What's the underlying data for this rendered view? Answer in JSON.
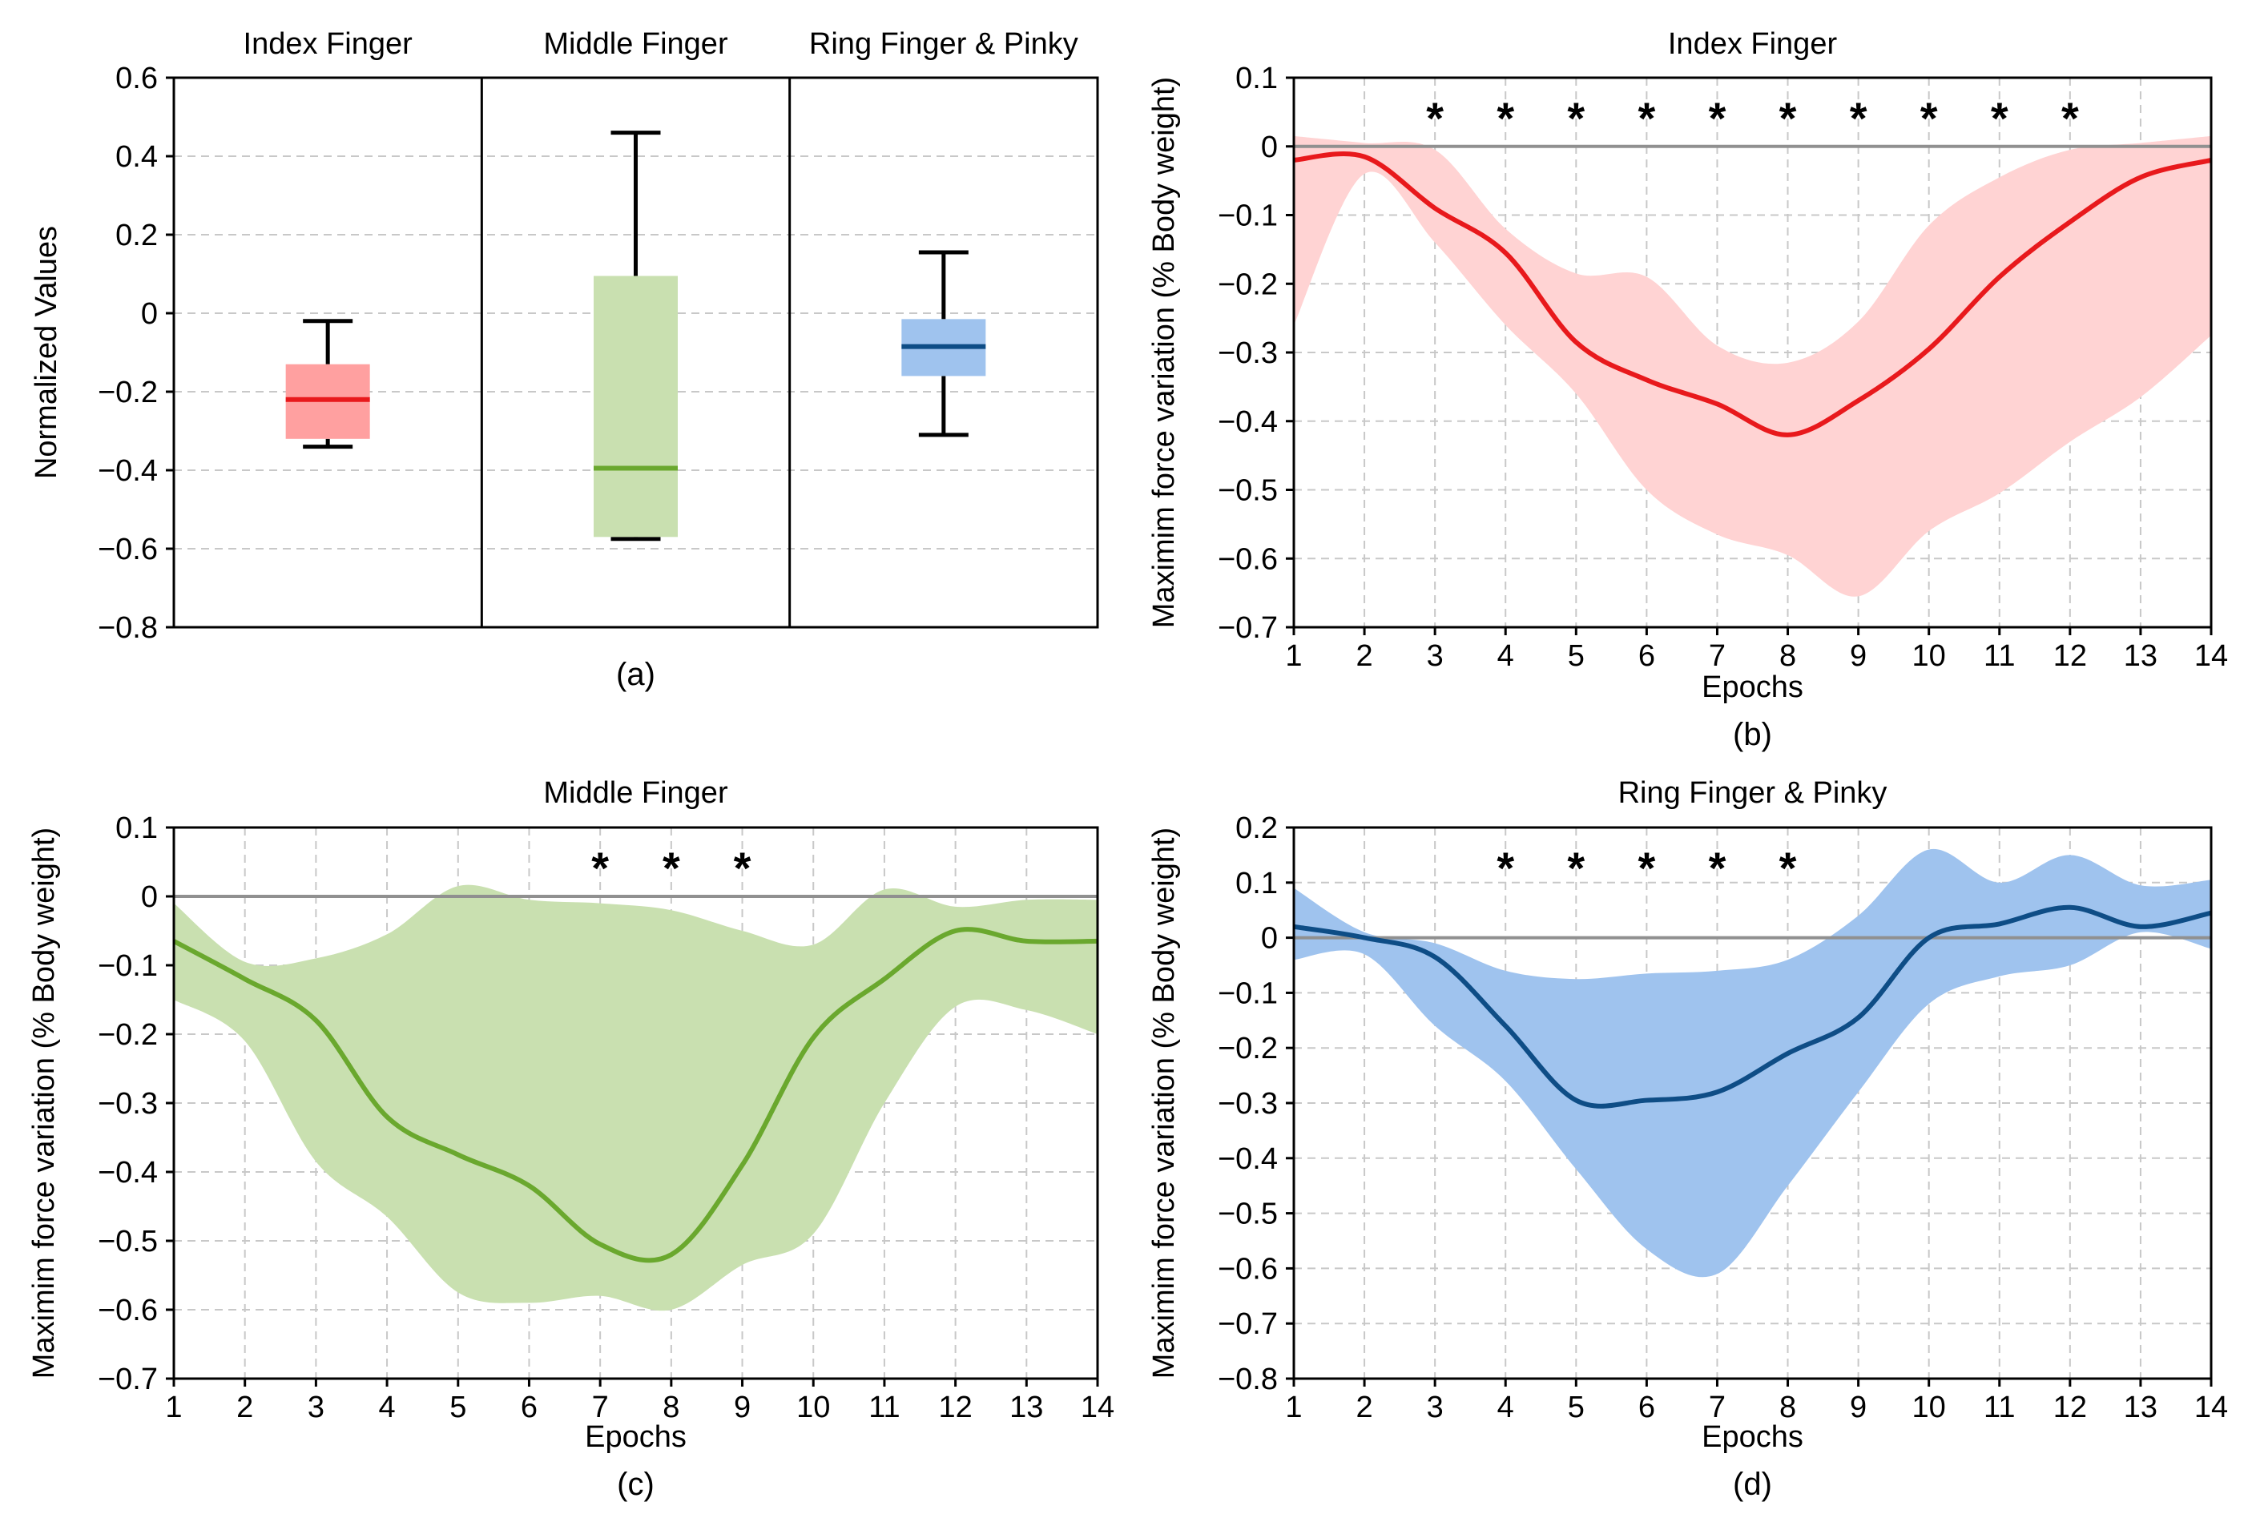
{
  "figure": {
    "captions": [
      "(a)",
      "(b)",
      "(c)",
      "(d)"
    ]
  },
  "colors": {
    "red_line": "#e8191c",
    "red_fill": "#ffd3d3",
    "red_box": "#ffa0a0",
    "green_line": "#6aa82e",
    "green_fill": "#c9e0b0",
    "blue_line": "#0e4d86",
    "blue_fill": "#9fc3ee",
    "zero_line": "#909090",
    "grid": "#c8c8c8"
  },
  "chart_data": [
    {
      "id": "a",
      "type": "box",
      "ylabel": "Normalized Values",
      "ylim": [
        -0.8,
        0.6
      ],
      "yticks": [
        -0.8,
        -0.6,
        -0.4,
        -0.2,
        0,
        0.2,
        0.4,
        0.6
      ],
      "caption": "(a)",
      "groups": [
        {
          "name": "Index Finger",
          "whisker_low": -0.34,
          "q1": -0.32,
          "median": -0.22,
          "q3": -0.13,
          "whisker_high": -0.02,
          "color": "red"
        },
        {
          "name": "Middle Finger",
          "whisker_low": -0.575,
          "q1": -0.57,
          "median": -0.395,
          "q3": 0.095,
          "whisker_high": 0.46,
          "color": "green"
        },
        {
          "name": "Ring Finger & Pinky",
          "whisker_low": -0.31,
          "q1": -0.16,
          "median": -0.085,
          "q3": -0.015,
          "whisker_high": 0.155,
          "color": "blue"
        }
      ]
    },
    {
      "id": "b",
      "type": "line",
      "title": "Index Finger",
      "xlabel": "Epochs",
      "ylabel": "Maximim force variation (% Body weight)",
      "caption": "(b)",
      "xlim": [
        1,
        14
      ],
      "ylim": [
        -0.7,
        0.1
      ],
      "xticks": [
        1,
        2,
        3,
        4,
        5,
        6,
        7,
        8,
        9,
        10,
        11,
        12,
        13,
        14
      ],
      "yticks": [
        -0.7,
        -0.6,
        -0.5,
        -0.4,
        -0.3,
        -0.2,
        -0.1,
        0,
        0.1
      ],
      "color": "red",
      "significant_epochs": [
        3,
        4,
        5,
        6,
        7,
        8,
        9,
        10,
        11,
        12
      ],
      "x": [
        1,
        2,
        3,
        4,
        5,
        6,
        7,
        8,
        9,
        10,
        11,
        12,
        13,
        14
      ],
      "mean": [
        -0.02,
        -0.015,
        -0.09,
        -0.155,
        -0.285,
        -0.34,
        -0.375,
        -0.42,
        -0.37,
        -0.295,
        -0.19,
        -0.11,
        -0.045,
        -0.02
      ],
      "upper": [
        0.015,
        0.005,
        -0.005,
        -0.12,
        -0.185,
        -0.19,
        -0.29,
        -0.315,
        -0.255,
        -0.115,
        -0.045,
        -0.005,
        0.005,
        0.015
      ],
      "lower": [
        -0.26,
        -0.04,
        -0.14,
        -0.26,
        -0.36,
        -0.5,
        -0.565,
        -0.595,
        -0.655,
        -0.56,
        -0.505,
        -0.43,
        -0.365,
        -0.275
      ]
    },
    {
      "id": "c",
      "type": "line",
      "title": "Middle Finger",
      "xlabel": "Epochs",
      "ylabel": "Maximim force variation (% Body weight)",
      "caption": "(c)",
      "xlim": [
        1,
        14
      ],
      "ylim": [
        -0.7,
        0.1
      ],
      "xticks": [
        1,
        2,
        3,
        4,
        5,
        6,
        7,
        8,
        9,
        10,
        11,
        12,
        13,
        14
      ],
      "yticks": [
        -0.7,
        -0.6,
        -0.5,
        -0.4,
        -0.3,
        -0.2,
        -0.1,
        0,
        0.1
      ],
      "color": "green",
      "significant_epochs": [
        7,
        8,
        9
      ],
      "x": [
        1,
        2,
        3,
        4,
        5,
        6,
        7,
        8,
        9,
        10,
        11,
        12,
        13,
        14
      ],
      "mean": [
        -0.065,
        -0.12,
        -0.18,
        -0.32,
        -0.375,
        -0.42,
        -0.505,
        -0.52,
        -0.39,
        -0.205,
        -0.12,
        -0.05,
        -0.065,
        -0.065
      ],
      "upper": [
        -0.01,
        -0.095,
        -0.09,
        -0.055,
        0.015,
        -0.005,
        -0.01,
        -0.02,
        -0.05,
        -0.07,
        0.01,
        -0.015,
        -0.005,
        -0.005
      ],
      "lower": [
        -0.15,
        -0.21,
        -0.385,
        -0.465,
        -0.575,
        -0.59,
        -0.58,
        -0.6,
        -0.535,
        -0.49,
        -0.3,
        -0.16,
        -0.165,
        -0.2
      ]
    },
    {
      "id": "d",
      "type": "line",
      "title": "Ring Finger & Pinky",
      "xlabel": "Epochs",
      "ylabel": "Maximim force variation (% Body weight)",
      "caption": "(d)",
      "xlim": [
        1,
        14
      ],
      "ylim": [
        -0.8,
        0.2
      ],
      "xticks": [
        1,
        2,
        3,
        4,
        5,
        6,
        7,
        8,
        9,
        10,
        11,
        12,
        13,
        14
      ],
      "yticks": [
        -0.8,
        -0.7,
        -0.6,
        -0.5,
        -0.4,
        -0.3,
        -0.2,
        -0.1,
        0,
        0.1,
        0.2
      ],
      "color": "blue",
      "significant_epochs": [
        4,
        5,
        6,
        7,
        8
      ],
      "x": [
        1,
        2,
        3,
        4,
        5,
        6,
        7,
        8,
        9,
        10,
        11,
        12,
        13,
        14
      ],
      "mean": [
        0.02,
        0.0,
        -0.035,
        -0.16,
        -0.295,
        -0.295,
        -0.28,
        -0.21,
        -0.145,
        -0.0,
        0.025,
        0.055,
        0.02,
        0.045
      ],
      "upper": [
        0.09,
        0.01,
        -0.01,
        -0.06,
        -0.075,
        -0.065,
        -0.06,
        -0.04,
        0.04,
        0.16,
        0.1,
        0.15,
        0.095,
        0.105
      ],
      "lower": [
        -0.04,
        -0.03,
        -0.16,
        -0.26,
        -0.42,
        -0.565,
        -0.61,
        -0.45,
        -0.28,
        -0.12,
        -0.07,
        -0.05,
        0.01,
        -0.02
      ]
    }
  ]
}
